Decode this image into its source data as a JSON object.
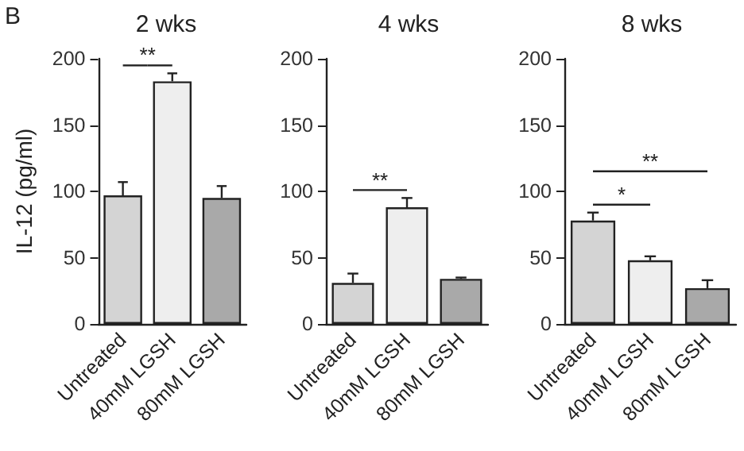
{
  "chart_data": [
    {
      "type": "bar",
      "title": "2 wks",
      "ylabel": "IL-12 (pg/ml)",
      "categories": [
        "Untreated",
        "40mM LGSH",
        "80mM LGSH"
      ],
      "values": [
        97,
        183,
        95
      ],
      "errors": [
        10,
        6,
        9
      ],
      "colors": [
        "#d4d4d4",
        "#eeeeee",
        "#a9a9a9"
      ],
      "ylim": [
        0,
        200
      ],
      "yticks": [
        0,
        50,
        100,
        150,
        200
      ],
      "annotations": [
        "B",
        "**"
      ]
    },
    {
      "type": "bar",
      "title": "4 wks",
      "categories": [
        "Untreated",
        "40mM LGSH",
        "80mM LGSH"
      ],
      "values": [
        31,
        88,
        34
      ],
      "errors": [
        7,
        7,
        1
      ],
      "colors": [
        "#d4d4d4",
        "#eeeeee",
        "#a9a9a9"
      ],
      "ylim": [
        0,
        200
      ],
      "yticks": [
        0,
        50,
        100,
        150,
        200
      ],
      "annotations": [
        "**"
      ]
    },
    {
      "type": "bar",
      "title": "8 wks",
      "categories": [
        "Untreated",
        "40mM LGSH",
        "80mM LGSH"
      ],
      "values": [
        78,
        48,
        27
      ],
      "errors": [
        6,
        3,
        6
      ],
      "colors": [
        "#d4d4d4",
        "#eeeeee",
        "#a9a9a9"
      ],
      "ylim": [
        0,
        200
      ],
      "yticks": [
        0,
        50,
        100,
        150,
        200
      ],
      "annotations": [
        "*",
        "**"
      ]
    }
  ]
}
